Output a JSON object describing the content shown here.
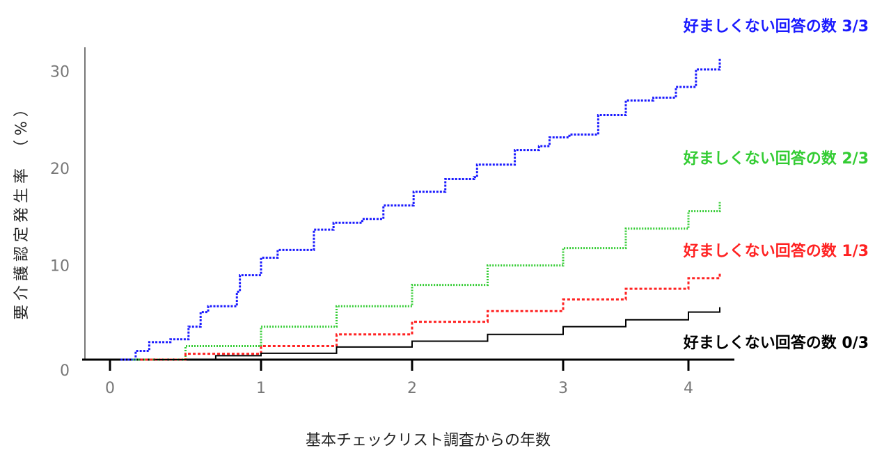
{
  "chart_data": {
    "type": "line",
    "title": "",
    "xlabel": "基本チェックリスト調査からの年数",
    "ylabel": "要介護認定発生率 （%）",
    "xticks": [
      0,
      1,
      2,
      3,
      4
    ],
    "yticks": [
      0,
      10,
      20,
      30
    ],
    "xlim": [
      0,
      4.25
    ],
    "ylim": [
      0,
      32
    ],
    "grid": false,
    "series": [
      {
        "name": "好ましくない回答の数 3/3",
        "color": "#1a1aff",
        "x": [
          0.07,
          0.17,
          0.26,
          0.4,
          0.52,
          0.6,
          0.65,
          0.84,
          0.86,
          1.0,
          1.11,
          1.35,
          1.48,
          1.67,
          1.81,
          2.01,
          2.22,
          2.41,
          2.43,
          2.68,
          2.84,
          2.91,
          3.05,
          3.28,
          3.5,
          3.72,
          3.9,
          4.06,
          4.25
        ],
        "y": [
          0,
          0.9,
          1.8,
          2.1,
          3.4,
          4.9,
          5.5,
          7.0,
          8.7,
          10.5,
          11.3,
          13.4,
          14.1,
          14.5,
          15.9,
          17.3,
          18.6,
          18.8,
          20.1,
          21.6,
          22.0,
          22.9,
          23.2,
          25.2,
          26.7,
          27.0,
          28.1,
          29.9,
          31.0
        ]
      },
      {
        "name": "好ましくない回答の数 2/3",
        "color": "#33cc33",
        "x": [
          0.15,
          0.5,
          1.0,
          1.5,
          2.0,
          2.5,
          3.0,
          3.5,
          4.0,
          4.25
        ],
        "y": [
          0,
          1.4,
          3.4,
          5.5,
          7.7,
          9.7,
          11.5,
          13.5,
          15.3,
          16.3
        ]
      },
      {
        "name": "好ましくない回答の数 1/3",
        "color": "#ff2222",
        "x": [
          0.2,
          0.5,
          1.0,
          1.5,
          2.0,
          2.5,
          3.0,
          3.5,
          4.0,
          4.25
        ],
        "y": [
          0,
          0.6,
          1.4,
          2.6,
          3.9,
          5.0,
          6.2,
          7.3,
          8.4,
          8.9
        ]
      },
      {
        "name": "好ましくない回答の数 0/3",
        "color": "#000000",
        "x": [
          0.3,
          0.7,
          1.0,
          1.5,
          2.0,
          2.5,
          3.0,
          3.5,
          4.0,
          4.25
        ],
        "y": [
          0,
          0.4,
          0.65,
          1.3,
          1.9,
          2.6,
          3.4,
          4.1,
          4.9,
          5.4
        ]
      }
    ]
  }
}
